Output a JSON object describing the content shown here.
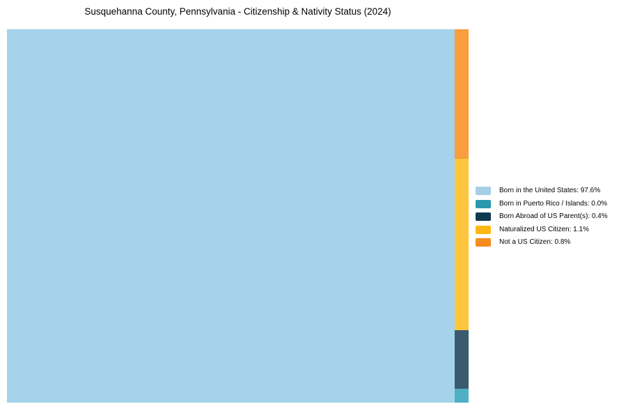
{
  "chart_data": {
    "type": "treemap",
    "title": "Susquehanna County, Pennsylvania - Citizenship & Nativity Status (2024)",
    "categories": [
      "Born in the United States",
      "Born in Puerto Rico / Islands",
      "Born Abroad of US Parent(s)",
      "Naturalized US Citizen",
      "Not a US Citizen"
    ],
    "values_pct": [
      97.6,
      0.0,
      0.4,
      1.1,
      0.8
    ],
    "colors_chart": [
      "#a4d3eb",
      "#4fb0c4",
      "#3a5b6f",
      "#fdc63e",
      "#f99e3c"
    ],
    "colors_legend": [
      "#a5cfe6",
      "#2a98ae",
      "#0e3a50",
      "#fdb814",
      "#f68b1f"
    ],
    "legend_position": "right-center",
    "grid": false,
    "layout_estimates": {
      "main_segment_index": 0,
      "main_rect_width_fraction": 0.97,
      "minor_column_top_to_bottom": [
        4,
        3,
        2,
        1
      ],
      "minor_column_height_fractions": [
        0.347,
        0.459,
        0.157,
        0.037
      ]
    }
  },
  "legend": {
    "items": [
      {
        "label": "Born in the United States: 97.6%",
        "color_index": 0
      },
      {
        "label": "Born in Puerto Rico / Islands: 0.0%",
        "color_index": 1
      },
      {
        "label": "Born Abroad of US Parent(s): 0.4%",
        "color_index": 2
      },
      {
        "label": "Naturalized US Citizen: 1.1%",
        "color_index": 3
      },
      {
        "label": "Not a US Citizen: 0.8%",
        "color_index": 4
      }
    ]
  }
}
